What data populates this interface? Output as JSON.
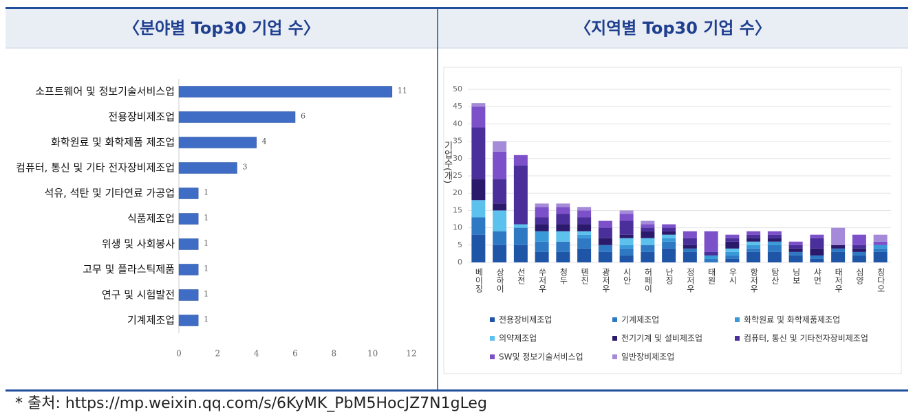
{
  "chart_data": [
    {
      "type": "hbar",
      "title": "〈분야별 Top30 기업 수〉",
      "categories": [
        "소프트웨어 및 정보기술서비스업",
        "전용장비제조업",
        "화학원료 및 화학제품 제조업",
        "컴퓨터, 통신 및 기타 전자장비제조업",
        "석유, 석탄 및 기타연료 가공업",
        "식품제조업",
        "위생 및 사회봉사",
        "고무 및 플라스틱제품",
        "연구 및 시험발전",
        "기계제조업"
      ],
      "values": [
        11,
        6,
        4,
        3,
        1,
        1,
        1,
        1,
        1,
        1
      ],
      "color": "#3f6cc4",
      "xlim": [
        0,
        12
      ],
      "xticks": [
        0,
        2,
        4,
        6,
        8,
        10,
        12
      ]
    },
    {
      "type": "stacked_bar",
      "title": "〈지역별 Top30 기업 수〉",
      "ylabel": "기업수(개)",
      "categories": [
        "베이징",
        "상하이",
        "선전",
        "쑤저우",
        "청두",
        "톈진",
        "광저우",
        "시안",
        "허페이",
        "난징",
        "정저우",
        "태원",
        "우시",
        "항저우",
        "탕산",
        "닝보",
        "샤먼",
        "태저우",
        "심양",
        "칭다오"
      ],
      "series": [
        {
          "name": "전용장비제조업",
          "color": "#1f55a6",
          "values": [
            8,
            5,
            5,
            3,
            3,
            4,
            3,
            2,
            3,
            4,
            3,
            0,
            1,
            3,
            3,
            2,
            1,
            3,
            2,
            3
          ]
        },
        {
          "name": "기계제조업",
          "color": "#2f79c4",
          "values": [
            5,
            4,
            5,
            3,
            3,
            3,
            2,
            2,
            2,
            2,
            1,
            1,
            1,
            1,
            2,
            1,
            1,
            1,
            1,
            1
          ]
        },
        {
          "name": "화학원료 및 화학제품제조업",
          "color": "#3a9ad9",
          "values": [
            0,
            0,
            0,
            3,
            0,
            1,
            0,
            1,
            0,
            1,
            0,
            1,
            1,
            1,
            1,
            0,
            0,
            0,
            0,
            1
          ]
        },
        {
          "name": "의약제조업",
          "color": "#5cc1ec",
          "values": [
            5,
            6,
            1,
            0,
            3,
            1,
            0,
            2,
            2,
            1,
            0,
            0,
            1,
            1,
            0,
            0,
            0,
            0,
            0,
            0
          ]
        },
        {
          "name": "전기기계 및 설비제조업",
          "color": "#2b1a6b",
          "values": [
            6,
            2,
            0,
            2,
            2,
            2,
            2,
            1,
            2,
            1,
            1,
            0,
            2,
            1,
            1,
            1,
            2,
            1,
            1,
            0
          ]
        },
        {
          "name": "컴퓨터, 통신 및 기타전자장비제조업",
          "color": "#4a2e9a",
          "values": [
            15,
            7,
            17,
            2,
            3,
            2,
            3,
            4,
            1,
            1,
            2,
            1,
            1,
            1,
            1,
            1,
            3,
            0,
            1,
            0
          ]
        },
        {
          "name": "SW및 정보기술서비스업",
          "color": "#7b50c9",
          "values": [
            6,
            8,
            3,
            3,
            2,
            2,
            2,
            2,
            1,
            1,
            2,
            6,
            1,
            1,
            1,
            1,
            1,
            0,
            3,
            1
          ]
        },
        {
          "name": "일반장비제조업",
          "color": "#a48ad8",
          "values": [
            1,
            3,
            0,
            1,
            1,
            1,
            0,
            1,
            1,
            0,
            0,
            0,
            0,
            0,
            0,
            0,
            0,
            5,
            0,
            2
          ]
        }
      ],
      "ylim": [
        0,
        50
      ],
      "yticks": [
        0,
        5,
        10,
        15,
        20,
        25,
        30,
        35,
        40,
        45,
        50
      ],
      "grid": true
    }
  ],
  "source": "* 출처: https://mp.weixin.qq.com/s/6KyMK_PbM5HocJZ7N1gLeg"
}
